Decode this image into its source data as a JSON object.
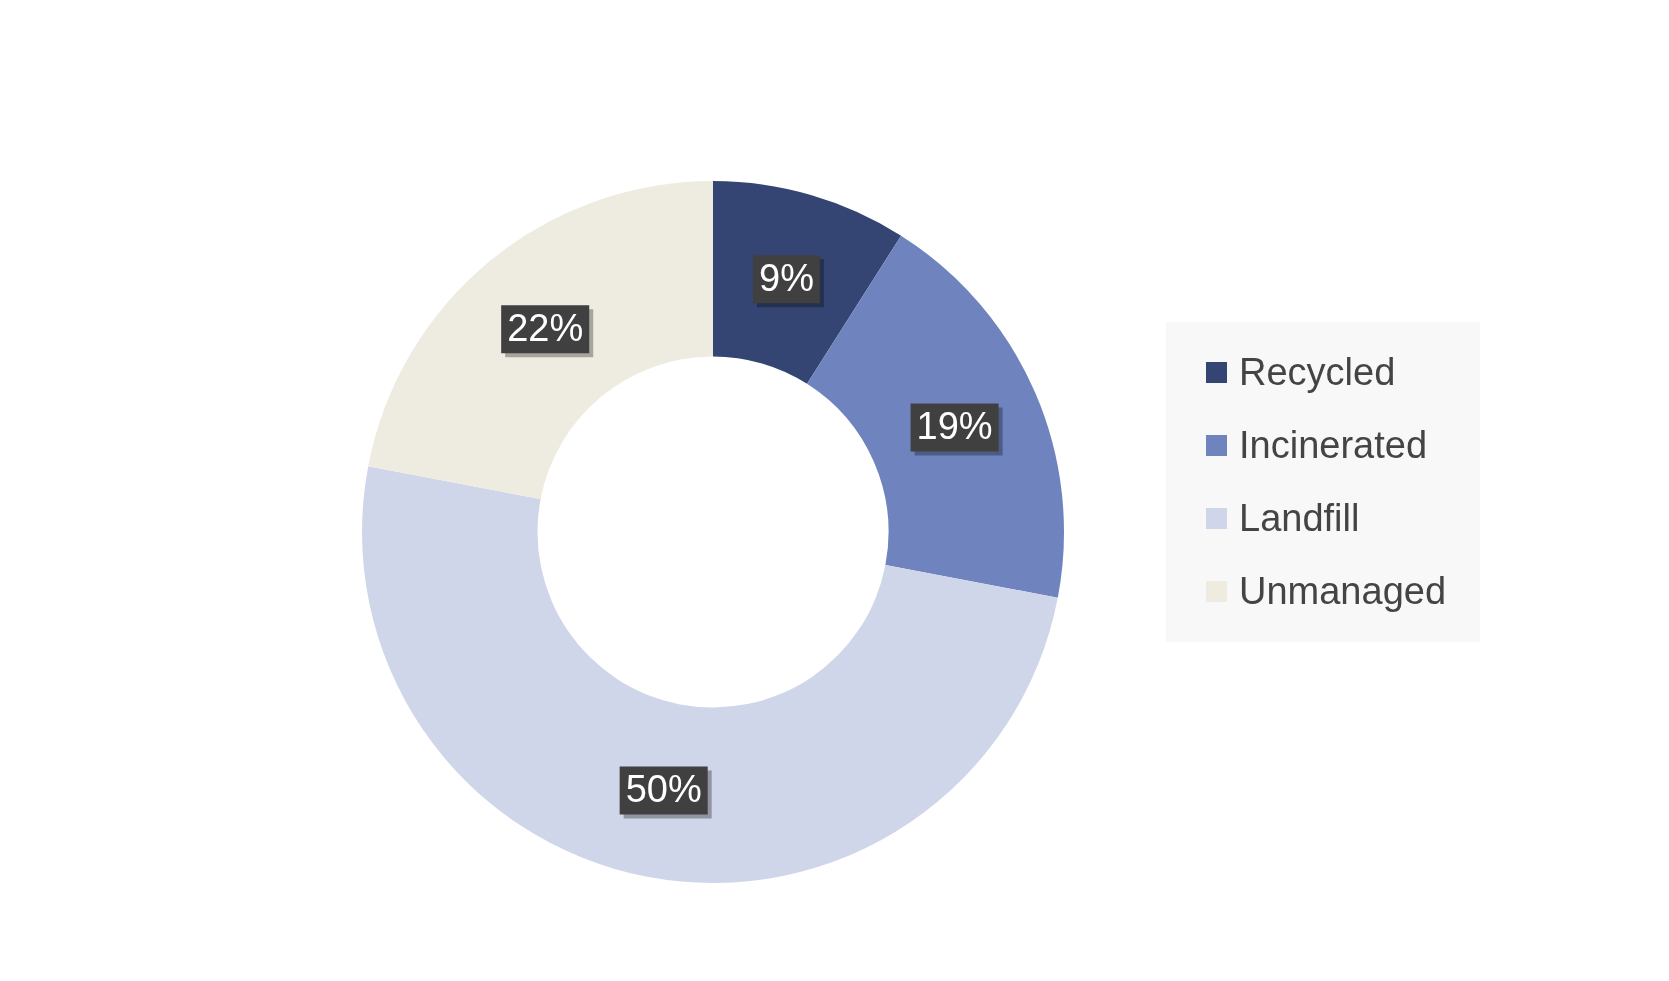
{
  "chart_data": {
    "type": "donut",
    "categories": [
      "Recycled",
      "Incinerated",
      "Landfill",
      "Unmanaged"
    ],
    "values": [
      9,
      19,
      50,
      22
    ],
    "colors": [
      "#344573",
      "#6f84bf",
      "#d0d6e9",
      "#eeece1"
    ],
    "value_labels": [
      "9%",
      "19%",
      "50%",
      "22%"
    ],
    "legend": "right"
  }
}
